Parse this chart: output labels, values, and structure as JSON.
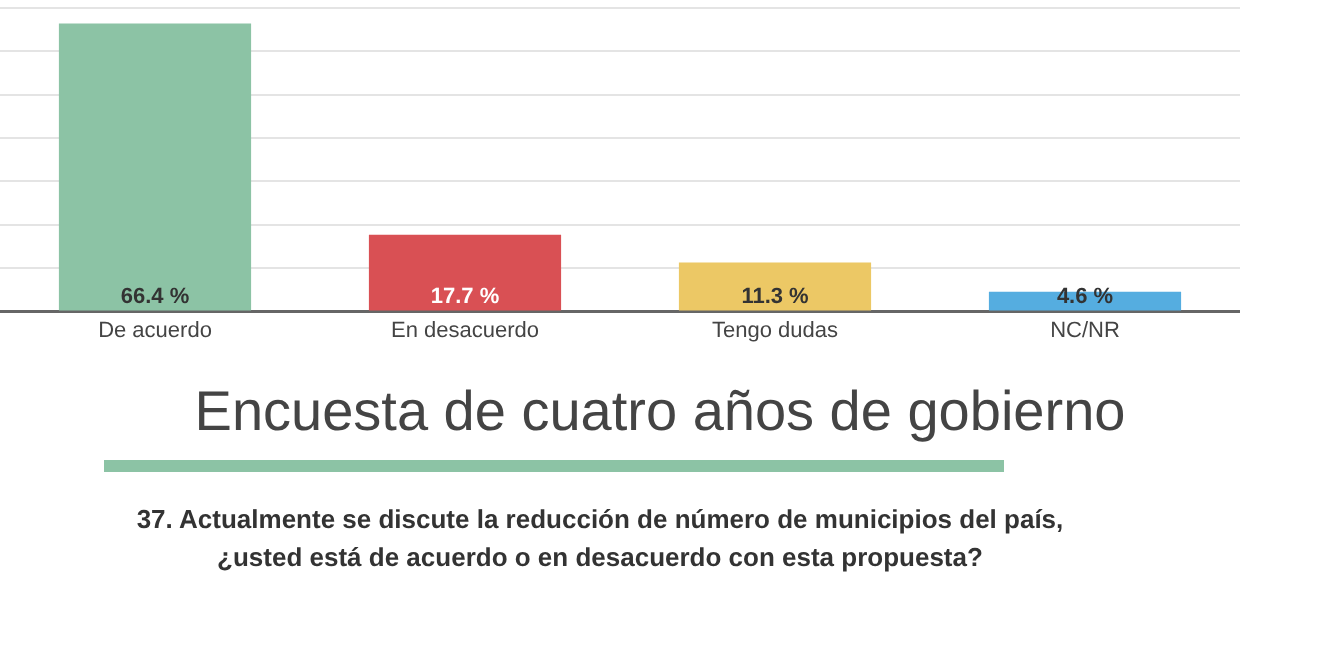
{
  "chart_data": {
    "type": "bar",
    "title": "Encuesta de cuatro años de gobierno",
    "subtitle": "37. Actualmente se discute la reducción de número de municipios del país, ¿usted está de acuerdo o en desacuerdo con esta propuesta?",
    "categories": [
      "De acuerdo",
      "En desacuerdo",
      "Tengo dudas",
      "NC/NR"
    ],
    "values": [
      66.4,
      17.7,
      11.3,
      4.6
    ],
    "colors": [
      "#8cc3a5",
      "#d95054",
      "#ecc865",
      "#55ade0"
    ],
    "value_labels": [
      "66.4 %",
      "17.7 %",
      "11.3 %",
      "4.6 %"
    ],
    "ylim": [
      0,
      70
    ],
    "yticks": [
      {
        "value": 0,
        "label": null
      },
      {
        "value": 10,
        "label": null
      },
      {
        "value": 20,
        "label": null
      },
      {
        "value": 30,
        "label": null
      },
      {
        "value": 40,
        "label": null
      },
      {
        "value": 50,
        "label": null
      },
      {
        "value": 60,
        "label": null
      },
      {
        "value": 70,
        "label": null
      }
    ],
    "grid": "y",
    "tick_labels": "x"
  }
}
